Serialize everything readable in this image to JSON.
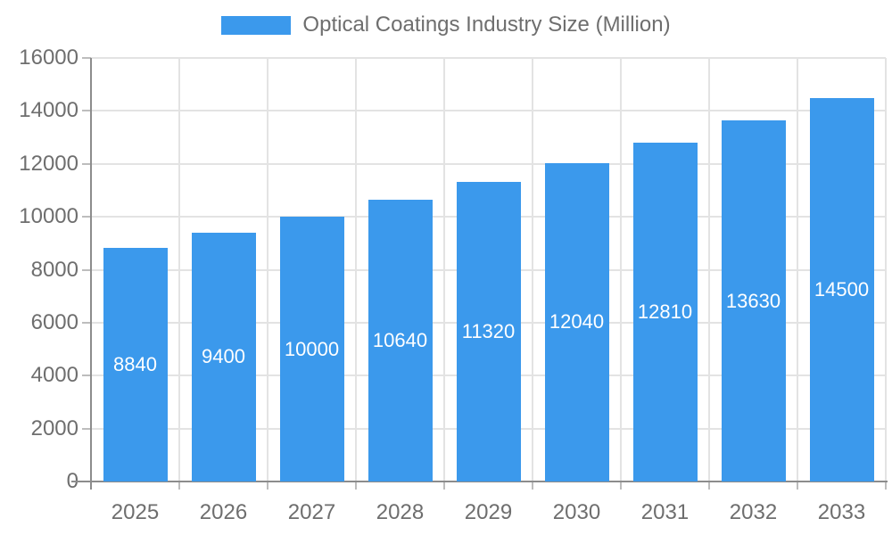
{
  "chart_data": {
    "type": "bar",
    "title": "Optical Coatings Industry Size (Million)",
    "legend": {
      "position": "top",
      "label": "Optical Coatings Industry Size (Million)"
    },
    "categories": [
      "2025",
      "2026",
      "2027",
      "2028",
      "2029",
      "2030",
      "2031",
      "2032",
      "2033"
    ],
    "values": [
      8840,
      9400,
      10000,
      10640,
      11320,
      12040,
      12810,
      13630,
      14500
    ],
    "bar_value_labels": [
      "8840",
      "9400",
      "10000",
      "10640",
      "11320",
      "12040",
      "12810",
      "13630",
      "14500"
    ],
    "xlabel": "",
    "ylabel": "",
    "ylim": [
      0,
      16000
    ],
    "ytick_step": 2000,
    "ytick_labels": [
      "0",
      "2000",
      "4000",
      "6000",
      "8000",
      "10000",
      "12000",
      "14000",
      "16000"
    ],
    "grid": true,
    "colors": {
      "bar": "#3b99ec",
      "bar_label": "#ffffff",
      "axis_text": "#6e6e6e",
      "axis_line": "#8c8c8c",
      "gridline": "#e3e3e3",
      "tick": "#bdbdbd",
      "background": "#ffffff"
    }
  }
}
